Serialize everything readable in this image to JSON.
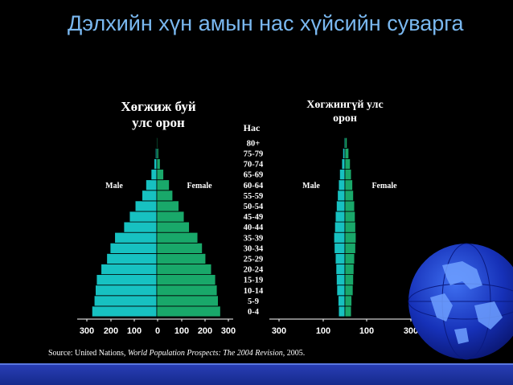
{
  "title": "Дэлхийн хүн амын нас хүйсийн суварга",
  "source": {
    "prefix": "Source: United Nations, ",
    "italic": "World Population Prospects: The 2004 Revision",
    "suffix": ", 2005."
  },
  "age_axis_title": "Нас",
  "icons": [
    "globe-icon"
  ],
  "colors": {
    "background": "#000000",
    "title": "#7ab8f0",
    "male": "#17c1c1",
    "female": "#19a86a",
    "footer": "#1f35a8"
  },
  "chart_data": [
    {
      "type": "bar",
      "orientation": "population-pyramid",
      "title": "Хөгжиж буй\nулс орон",
      "categories": [
        "0-4",
        "5-9",
        "10-14",
        "15-19",
        "20-24",
        "25-29",
        "30-34",
        "35-39",
        "40-44",
        "45-49",
        "50-54",
        "55-59",
        "60-64",
        "65-69",
        "70-74",
        "75-79",
        "80+"
      ],
      "series": [
        {
          "name": "Male",
          "values": [
            285,
            275,
            270,
            265,
            245,
            220,
            205,
            185,
            145,
            120,
            95,
            65,
            48,
            25,
            12,
            6,
            3
          ]
        },
        {
          "name": "Female",
          "values": [
            280,
            270,
            265,
            258,
            240,
            215,
            200,
            180,
            143,
            120,
            97,
            70,
            55,
            30,
            15,
            8,
            4
          ]
        }
      ],
      "xticks": [
        "300",
        "200",
        "100",
        "0",
        "100",
        "200",
        "300"
      ],
      "xlim": [
        -300,
        300
      ]
    },
    {
      "type": "bar",
      "orientation": "population-pyramid",
      "title": "Хөгжингүй улс\nорон",
      "categories": [
        "0-4",
        "5-9",
        "10-14",
        "15-19",
        "20-24",
        "25-29",
        "30-34",
        "35-39",
        "40-44",
        "45-49",
        "50-54",
        "55-59",
        "60-64",
        "65-69",
        "70-74",
        "75-79",
        "80+"
      ],
      "series": [
        {
          "name": "Male",
          "values": [
            30,
            32,
            38,
            40,
            42,
            45,
            50,
            52,
            48,
            45,
            40,
            35,
            30,
            25,
            15,
            10,
            5
          ]
        },
        {
          "name": "Female",
          "values": [
            30,
            32,
            38,
            40,
            42,
            45,
            50,
            52,
            50,
            48,
            45,
            40,
            36,
            30,
            25,
            18,
            10
          ]
        }
      ],
      "xticks": [
        "300",
        "100",
        "100",
        "300"
      ],
      "xlim": [
        -300,
        300
      ]
    }
  ]
}
